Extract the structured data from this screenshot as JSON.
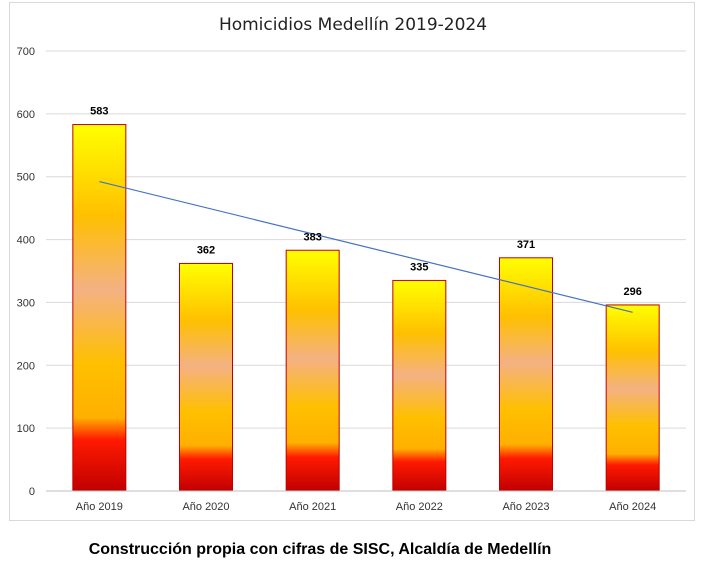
{
  "chart_data": {
    "type": "bar",
    "title": "Homicidios Medellín 2019-2024",
    "categories": [
      "Año 2019",
      "Año 2020",
      "Año 2021",
      "Año 2022",
      "Año 2023",
      "Año 2024"
    ],
    "values": [
      583,
      362,
      383,
      335,
      371,
      296
    ],
    "data_labels": [
      "583",
      "362",
      "383",
      "335",
      "371",
      "296"
    ],
    "xlabel": "",
    "ylabel": "",
    "ylim": [
      0,
      700
    ],
    "yticks": [
      0,
      100,
      200,
      300,
      400,
      500,
      600,
      700
    ],
    "grid": true,
    "legend": "none",
    "trendline": {
      "type": "linear",
      "color": "#4472c4"
    },
    "bar_gradient": [
      "#ffff00",
      "#ffc000",
      "#f4b183",
      "#ffc000",
      "#ff0000",
      "#c00000"
    ],
    "bar_border_color": "#c00000"
  },
  "caption": "Construcción propia con cifras de SISC, Alcaldía de Medellín"
}
